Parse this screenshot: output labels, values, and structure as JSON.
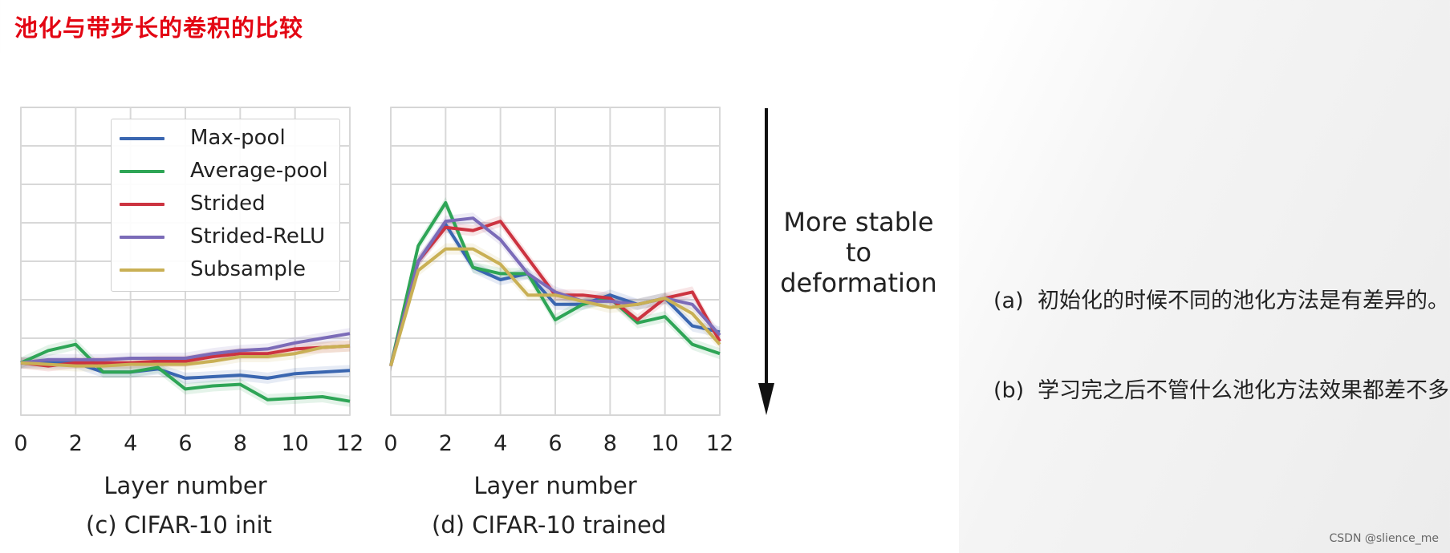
{
  "page": {
    "title": "池化与带步长的卷积的比较",
    "watermark": "CSDN @slience_me"
  },
  "arrow_label": [
    "More stable",
    "to",
    "deformation"
  ],
  "notes": [
    {
      "label": "(a)",
      "text": "初始化的时候不同的池化方法是有差异的。"
    },
    {
      "label": "(b)",
      "text": "学习完之后不管什么池化方法效果都差不多。"
    }
  ],
  "colors": {
    "Max-pool": "#3a66b0",
    "Average-pool": "#2ea556",
    "Strided": "#cc3340",
    "Strided-ReLU": "#7b6bb8",
    "Subsample": "#c9b055",
    "grid": "#d8d8d8",
    "title": "#e30613"
  },
  "chart_data": [
    {
      "type": "line",
      "caption": "(c) CIFAR-10 init",
      "xlabel": "Layer number",
      "ylabel": "",
      "xlim": [
        0,
        12
      ],
      "ylim": [
        0,
        1
      ],
      "xticks": [
        "0",
        "2",
        "4",
        "6",
        "8",
        "10",
        "12"
      ],
      "grid": true,
      "legend": "top",
      "x": [
        0,
        1,
        2,
        3,
        4,
        5,
        6,
        7,
        8,
        9,
        10,
        11,
        12
      ],
      "series": [
        {
          "name": "Max-pool",
          "values": [
            0.17,
            0.17,
            0.17,
            0.14,
            0.14,
            0.15,
            0.12,
            0.125,
            0.13,
            0.12,
            0.135,
            0.14,
            0.145
          ]
        },
        {
          "name": "Average-pool",
          "values": [
            0.17,
            0.21,
            0.23,
            0.14,
            0.14,
            0.155,
            0.085,
            0.095,
            0.1,
            0.05,
            0.055,
            0.06,
            0.045
          ]
        },
        {
          "name": "Strided",
          "values": [
            0.17,
            0.16,
            0.17,
            0.17,
            0.17,
            0.175,
            0.175,
            0.19,
            0.2,
            0.2,
            0.215,
            0.22,
            0.225
          ]
        },
        {
          "name": "Strided-ReLU",
          "values": [
            0.17,
            0.18,
            0.18,
            0.18,
            0.185,
            0.185,
            0.185,
            0.2,
            0.21,
            0.215,
            0.235,
            0.25,
            0.265
          ]
        },
        {
          "name": "Subsample",
          "values": [
            0.17,
            0.165,
            0.16,
            0.16,
            0.165,
            0.165,
            0.165,
            0.175,
            0.19,
            0.19,
            0.2,
            0.22,
            0.225
          ]
        }
      ]
    },
    {
      "type": "line",
      "caption": "(d) CIFAR-10 trained",
      "xlabel": "Layer number",
      "ylabel": "",
      "xlim": [
        0,
        12
      ],
      "ylim": [
        0,
        1
      ],
      "xticks": [
        "0",
        "2",
        "4",
        "6",
        "8",
        "10",
        "12"
      ],
      "grid": true,
      "legend": "none",
      "x": [
        0,
        1,
        2,
        3,
        4,
        5,
        6,
        7,
        8,
        9,
        10,
        11,
        12
      ],
      "series": [
        {
          "name": "Max-pool",
          "values": [
            0.16,
            0.5,
            0.62,
            0.48,
            0.44,
            0.46,
            0.36,
            0.36,
            0.39,
            0.36,
            0.38,
            0.29,
            0.27
          ]
        },
        {
          "name": "Average-pool",
          "values": [
            0.16,
            0.55,
            0.69,
            0.48,
            0.46,
            0.46,
            0.31,
            0.36,
            0.38,
            0.3,
            0.32,
            0.23,
            0.2
          ]
        },
        {
          "name": "Strided",
          "values": [
            0.16,
            0.5,
            0.61,
            0.6,
            0.63,
            0.51,
            0.39,
            0.39,
            0.38,
            0.31,
            0.38,
            0.4,
            0.24
          ]
        },
        {
          "name": "Strided-ReLU",
          "values": [
            0.16,
            0.5,
            0.63,
            0.64,
            0.57,
            0.46,
            0.4,
            0.37,
            0.37,
            0.36,
            0.38,
            0.36,
            0.26
          ]
        },
        {
          "name": "Subsample",
          "values": [
            0.16,
            0.47,
            0.54,
            0.54,
            0.49,
            0.39,
            0.39,
            0.37,
            0.35,
            0.36,
            0.38,
            0.33,
            0.23
          ]
        }
      ]
    }
  ]
}
